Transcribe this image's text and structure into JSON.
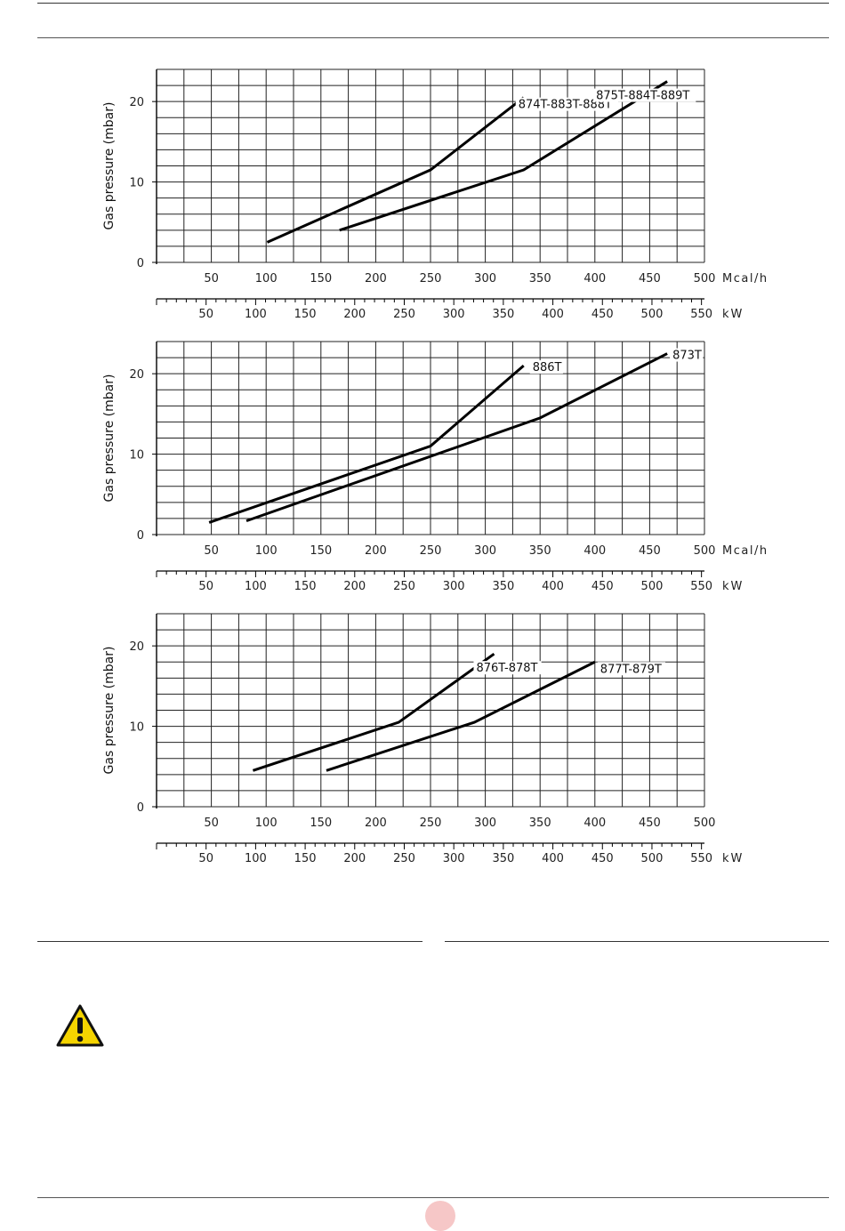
{
  "chart_data": [
    {
      "type": "line",
      "ylabel": "Gas pressure (mbar)",
      "ylim": [
        0,
        24
      ],
      "yticks": [
        "0",
        "10",
        "20"
      ],
      "xlim": [
        0,
        500
      ],
      "xticks": [
        "50",
        "100",
        "150",
        "200",
        "250",
        "300",
        "350",
        "400",
        "450",
        "500"
      ],
      "xunit": "Mcal/h",
      "x2lim": [
        0,
        553
      ],
      "x2ticks": [
        "50",
        "100",
        "150",
        "200",
        "250",
        "300",
        "350",
        "400",
        "450",
        "500",
        "550"
      ],
      "x2unit": "kW",
      "series": [
        {
          "name": "874T-883T-888T",
          "x": [
            101,
            250,
            335
          ],
          "y": [
            2.5,
            11.5,
            20.5
          ]
        },
        {
          "name": "875T-884T-889T",
          "x": [
            167,
            335,
            466
          ],
          "y": [
            4.0,
            11.5,
            22.5
          ]
        }
      ]
    },
    {
      "type": "line",
      "ylabel": "Gas pressure (mbar)",
      "ylim": [
        0,
        24
      ],
      "yticks": [
        "0",
        "10",
        "20"
      ],
      "xlim": [
        0,
        500
      ],
      "xticks": [
        "50",
        "100",
        "150",
        "200",
        "250",
        "300",
        "350",
        "400",
        "450",
        "500"
      ],
      "xunit": "Mcal/h",
      "x2lim": [
        0,
        553
      ],
      "x2ticks": [
        "50",
        "100",
        "150",
        "200",
        "250",
        "300",
        "350",
        "400",
        "450",
        "500",
        "550"
      ],
      "x2unit": "kW",
      "series": [
        {
          "name": "886T",
          "x": [
            48,
            250,
            335
          ],
          "y": [
            1.5,
            11.0,
            21.0
          ]
        },
        {
          "name": "873T",
          "x": [
            82,
            350,
            466
          ],
          "y": [
            1.7,
            14.5,
            22.5
          ]
        }
      ]
    },
    {
      "type": "line",
      "ylabel": "Gas pressure (mbar)",
      "ylim": [
        0,
        24
      ],
      "yticks": [
        "0",
        "10",
        "20"
      ],
      "xlim": [
        0,
        500
      ],
      "xticks": [
        "50",
        "100",
        "150",
        "200",
        "250",
        "300",
        "350",
        "400",
        "450",
        "500"
      ],
      "xunit": "",
      "x2lim": [
        0,
        553
      ],
      "x2ticks": [
        "50",
        "100",
        "150",
        "200",
        "250",
        "300",
        "350",
        "400",
        "450",
        "500",
        "550"
      ],
      "x2unit": "kW",
      "series": [
        {
          "name": "876T-878T",
          "x": [
            88,
            221,
            308
          ],
          "y": [
            4.5,
            10.5,
            19.0
          ]
        },
        {
          "name": "877T-879T",
          "x": [
            155,
            290,
            400
          ],
          "y": [
            4.5,
            10.5,
            18.0
          ]
        }
      ]
    }
  ],
  "icons": {
    "warning": "warning-triangle-icon",
    "page_marker": "page-number-dot"
  },
  "colors": {
    "warning_fill": "#f5d400",
    "page_dot": "#f6c7c7"
  }
}
